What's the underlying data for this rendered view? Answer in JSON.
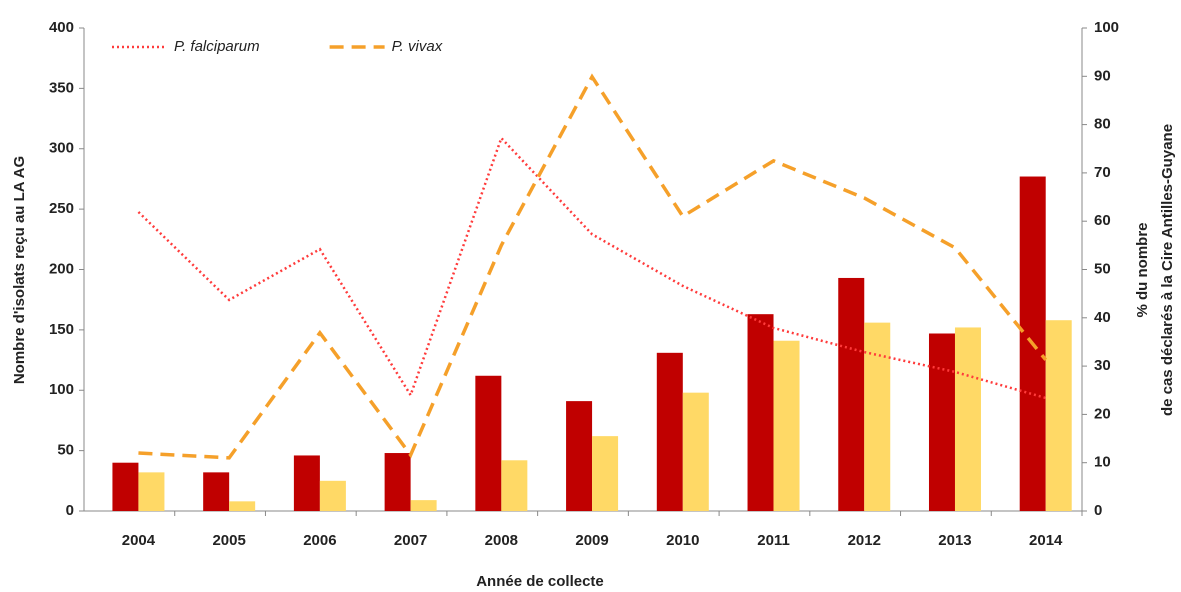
{
  "chart_data": {
    "type": "bar",
    "x_label": "Année de collecte",
    "y_label": "Nombre d'isolats reçu au LA AG",
    "y2_label": [
      "% du nombre",
      "de cas déclarés à la Cire Antilles-Guyane"
    ],
    "categories": [
      "2004",
      "2005",
      "2006",
      "2007",
      "2008",
      "2009",
      "2010",
      "2011",
      "2012",
      "2013",
      "2014"
    ],
    "series": [
      {
        "type": "bar",
        "color": "#c00000",
        "values": [
          40,
          32,
          46,
          48,
          112,
          91,
          131,
          163,
          193,
          147,
          277
        ]
      },
      {
        "type": "bar",
        "color": "#ffd966",
        "values": [
          32,
          8,
          25,
          9,
          42,
          62,
          98,
          141,
          156,
          152,
          158
        ]
      },
      {
        "type": "line",
        "name": "P. falciparum",
        "color": "#ff3b3b",
        "dash": "dotted",
        "axis": "y2",
        "values": [
          61.9,
          43.7,
          54.2,
          24,
          77.2,
          57.3,
          46.6,
          37.9,
          32.9,
          28.8,
          23.4
        ]
      },
      {
        "type": "line",
        "name": "P. vivax",
        "color": "#f5a02a",
        "dash": "dashed",
        "axis": "y2",
        "values": [
          12,
          11,
          36.9,
          11.6,
          55,
          89.9,
          61,
          72.5,
          64.8,
          54.5,
          31.3
        ]
      }
    ],
    "ylim": [
      0,
      400
    ],
    "yticks": [
      0,
      50,
      100,
      150,
      200,
      250,
      300,
      350,
      400
    ],
    "y2lim": [
      0,
      100
    ],
    "y2ticks": [
      0,
      10,
      20,
      30,
      40,
      50,
      60,
      70,
      80,
      90,
      100
    ],
    "legend": "top-left"
  }
}
